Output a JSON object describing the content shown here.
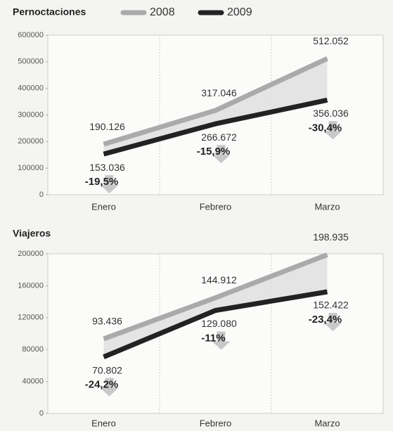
{
  "chart_data": [
    {
      "type": "line",
      "title": "Pernoctaciones",
      "categories": [
        "Enero",
        "Febrero",
        "Marzo"
      ],
      "series": [
        {
          "name": "2008",
          "color": "#aaaaaa",
          "values": [
            190126,
            317046,
            512052
          ],
          "value_labels": [
            "190.126",
            "317.046",
            "512.052"
          ]
        },
        {
          "name": "2009",
          "color": "#222222",
          "values": [
            153036,
            266672,
            356036
          ],
          "value_labels": [
            "153.036",
            "266.672",
            "356.036"
          ]
        }
      ],
      "changes": [
        -19.5,
        -15.9,
        -30.4
      ],
      "change_labels": [
        "-19,5%",
        "-15,9%",
        "-30,4%"
      ],
      "ylim": [
        0,
        600000
      ],
      "yticks": [
        0,
        100000,
        200000,
        300000,
        400000,
        500000,
        600000
      ],
      "grid": true
    },
    {
      "type": "line",
      "title": "Viajeros",
      "categories": [
        "Enero",
        "Febrero",
        "Marzo"
      ],
      "series": [
        {
          "color": "#aaaaaa",
          "values": [
            93436,
            144912,
            198935
          ],
          "value_labels": [
            "93.436",
            "144.912",
            "198.935"
          ]
        },
        {
          "color": "#222222",
          "values": [
            70802,
            129080,
            152422
          ],
          "value_labels": [
            "70.802",
            "129.080",
            "152.422"
          ]
        }
      ],
      "changes": [
        -24.2,
        -11,
        -23.4
      ],
      "change_labels": [
        "-24,2%",
        "-11%",
        "-23,4%"
      ],
      "ylim": [
        0,
        200000
      ],
      "yticks": [
        0,
        40000,
        80000,
        120000,
        160000,
        200000
      ],
      "grid": true
    }
  ]
}
